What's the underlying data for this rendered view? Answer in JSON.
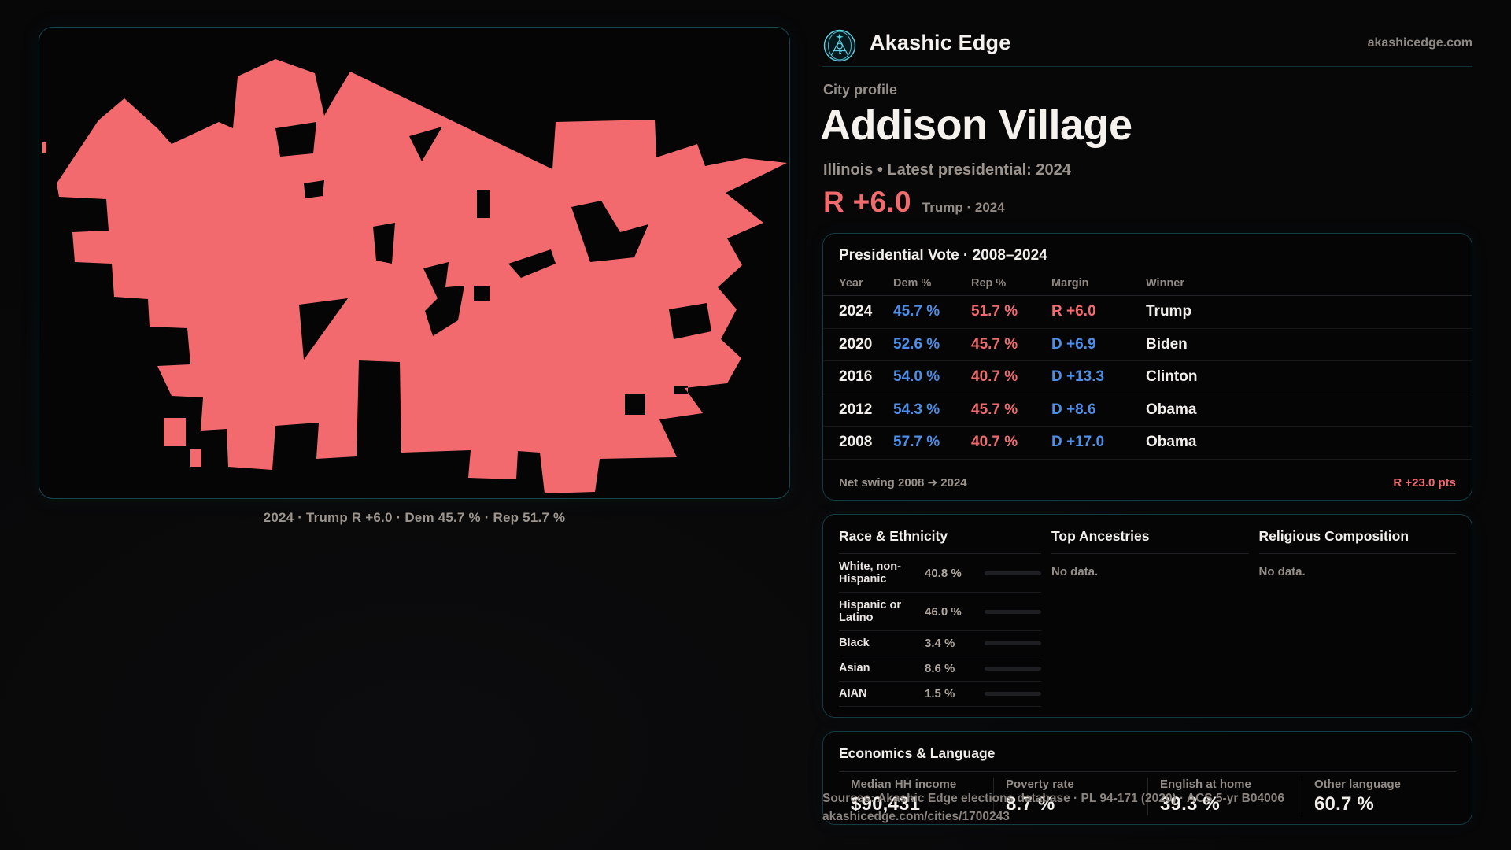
{
  "brand": {
    "name": "Akashic Edge",
    "site": "akashicedge.com",
    "logo": "akashic-emblem-icon",
    "logo_color": "#5ECFE2"
  },
  "profile": {
    "eyebrow": "City profile",
    "city": "Addison Village",
    "subtitle": "Illinois • Latest presidential: 2024",
    "margin": "R +6.0",
    "margin_context": "Trump · 2024"
  },
  "map": {
    "caption": "2024 · Trump R +6.0 · Dem 45.7 % · Rep 51.7 %",
    "fill_color": "#F26A6E"
  },
  "vote_table": {
    "title": "Presidential Vote · 2008–2024",
    "columns": {
      "year": "Year",
      "dem": "Dem %",
      "rep": "Rep %",
      "margin": "Margin",
      "winner": "Winner"
    },
    "rows": [
      {
        "year": "2024",
        "dem": "45.7 %",
        "rep": "51.7 %",
        "margin": "R +6.0",
        "margin_party": "R",
        "winner": "Trump"
      },
      {
        "year": "2020",
        "dem": "52.6 %",
        "rep": "45.7 %",
        "margin": "D +6.9",
        "margin_party": "D",
        "winner": "Biden"
      },
      {
        "year": "2016",
        "dem": "54.0 %",
        "rep": "40.7 %",
        "margin": "D +13.3",
        "margin_party": "D",
        "winner": "Clinton"
      },
      {
        "year": "2012",
        "dem": "54.3 %",
        "rep": "45.7 %",
        "margin": "D +8.6",
        "margin_party": "D",
        "winner": "Obama"
      },
      {
        "year": "2008",
        "dem": "57.7 %",
        "rep": "40.7 %",
        "margin": "D +17.0",
        "margin_party": "D",
        "winner": "Obama"
      }
    ],
    "net_swing_label": "Net swing 2008 ➔ 2024",
    "net_swing_value": "R +23.0 pts",
    "dem_color": "#4C8EE8",
    "rep_color": "#EE6B6E"
  },
  "race": {
    "title": "Race & Ethnicity",
    "rows": [
      {
        "label": "White, non-Hispanic",
        "value": "40.8 %",
        "pct": 40.8,
        "color": "#8C99AB"
      },
      {
        "label": "Hispanic or Latino",
        "value": "46.0 %",
        "pct": 46.0,
        "color": "#E29A21"
      },
      {
        "label": "Black",
        "value": "3.4 %",
        "pct": 3.4,
        "color": "#8A76E8"
      },
      {
        "label": "Asian",
        "value": "8.6 %",
        "pct": 8.6,
        "color": "#2FD6A0"
      },
      {
        "label": "AIAN",
        "value": "1.5 %",
        "pct": 1.5,
        "color": "#D98A2B"
      }
    ]
  },
  "ancestries": {
    "title": "Top Ancestries",
    "empty": "No data."
  },
  "religion": {
    "title": "Religious Composition",
    "empty": "No data."
  },
  "economics": {
    "title": "Economics & Language",
    "stats": [
      {
        "label": "Median HH income",
        "value": "$90,431"
      },
      {
        "label": "Poverty rate",
        "value": "8.7 %"
      },
      {
        "label": "English at home",
        "value": "39.3 %"
      },
      {
        "label": "Other language",
        "value": "60.7 %"
      }
    ]
  },
  "footer": {
    "sources": "Sources: Akashic Edge elections database · PL 94-171 (2020) · ACS 5-yr B04006",
    "permalink": "akashicedge.com/cities/1700243"
  }
}
